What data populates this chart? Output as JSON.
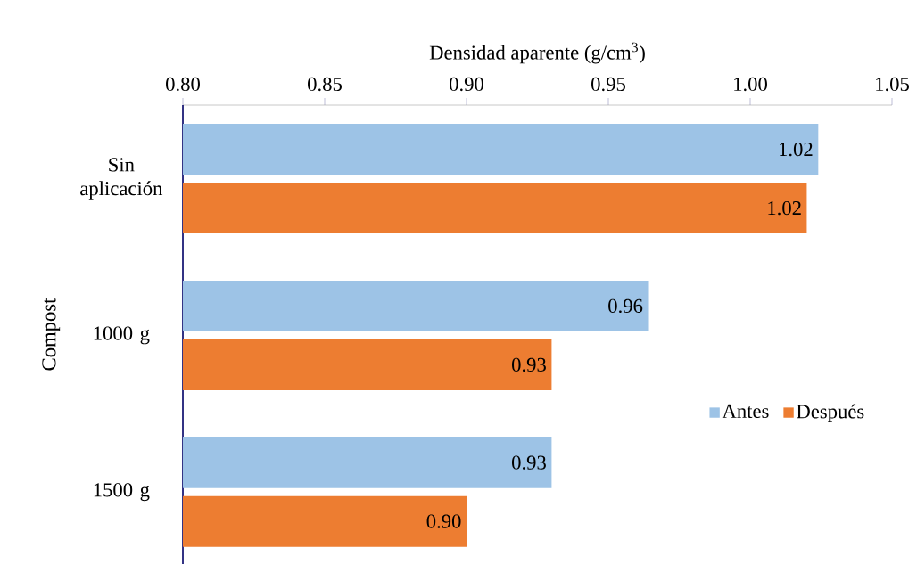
{
  "chart_data": {
    "type": "bar",
    "orientation": "horizontal",
    "xlabel": "Densidad aparente (g/cm$^{3}$)",
    "ylabel": "Compost",
    "categories": [
      "Sin aplicación",
      "1000 g",
      "1500 g"
    ],
    "series": [
      {
        "name": "Antes",
        "color": "#9dc3e6",
        "values": [
          1.024,
          0.964,
          0.93
        ],
        "value_labels": [
          "1.02",
          "0.96",
          "0.93"
        ]
      },
      {
        "name": "Después",
        "color": "#ed7d31",
        "values": [
          1.02,
          0.93,
          0.9
        ],
        "value_labels": [
          "1.02",
          "0.93",
          "0.90"
        ]
      }
    ],
    "xlim": [
      0.8,
      1.05
    ],
    "xticks": [
      {
        "value": 0.8,
        "label": "0.80"
      },
      {
        "value": 0.85,
        "label": "0.85"
      },
      {
        "value": 0.9,
        "label": "0.90"
      },
      {
        "value": 0.95,
        "label": "0.95"
      },
      {
        "value": 1.0,
        "label": "1.00"
      },
      {
        "value": 1.05,
        "label": "1.05"
      }
    ],
    "legend": "right",
    "grid": false
  }
}
